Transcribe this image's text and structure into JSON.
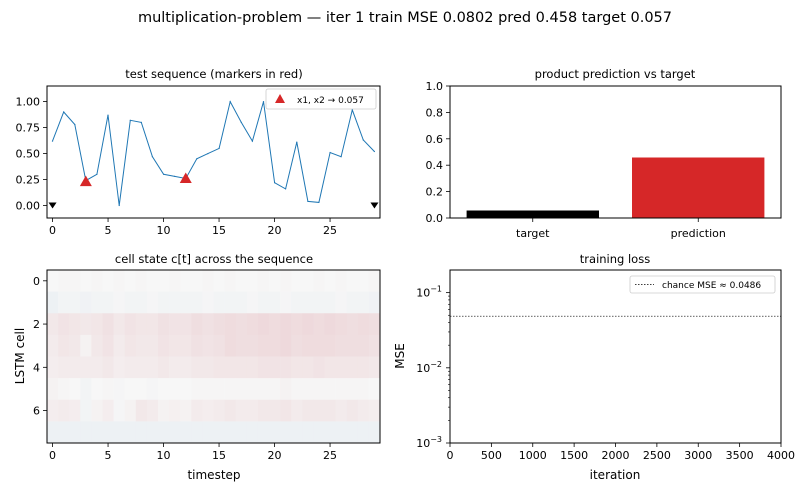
{
  "figure": {
    "suptitle": "multiplication-problem — iter 1   train MSE 0.0802   pred 0.458  target 0.057"
  },
  "chart_data": [
    {
      "type": "line",
      "title": "test sequence (markers in red)",
      "xlabel": "",
      "ylabel": "",
      "xlim": [
        -0.5,
        29.5
      ],
      "ylim": [
        -0.12,
        1.15
      ],
      "xticks": [
        "0",
        "5",
        "10",
        "15",
        "20",
        "25"
      ],
      "yticks": [
        "0.00",
        "0.25",
        "0.50",
        "0.75",
        "1.00"
      ],
      "x": [
        0,
        1,
        2,
        3,
        4,
        5,
        6,
        7,
        8,
        9,
        10,
        11,
        12,
        13,
        14,
        15,
        16,
        17,
        18,
        19,
        20,
        21,
        22,
        23,
        24,
        25,
        26,
        27,
        28,
        29
      ],
      "series": [
        {
          "name": "",
          "color": "#1f77b4",
          "values": [
            0.62,
            0.9,
            0.78,
            0.24,
            0.3,
            0.87,
            0.0,
            0.82,
            0.8,
            0.47,
            0.3,
            0.28,
            0.26,
            0.45,
            0.5,
            0.55,
            1.0,
            0.8,
            0.62,
            1.0,
            0.22,
            0.16,
            0.61,
            0.04,
            0.03,
            0.51,
            0.47,
            0.92,
            0.63,
            0.52
          ]
        }
      ],
      "markers": {
        "name": "x1, x2 → 0.057",
        "color": "#d62728",
        "x": [
          3,
          12
        ],
        "y": [
          0.23,
          0.26
        ]
      },
      "end_markers": {
        "color": "#000000",
        "x": [
          0,
          29
        ],
        "y": [
          0.0,
          0.0
        ]
      },
      "legend": "top-right"
    },
    {
      "type": "bar",
      "title": "product prediction vs target",
      "categories": [
        "target",
        "prediction"
      ],
      "values": [
        0.057,
        0.458
      ],
      "colors": [
        "#000000",
        "#d62728"
      ],
      "ylim": [
        0,
        1.0
      ],
      "yticks": [
        "0.0",
        "0.2",
        "0.4",
        "0.6",
        "0.8",
        "1.0"
      ]
    },
    {
      "type": "heatmap",
      "title": "cell state c[t] across the sequence",
      "xlabel": "timestep",
      "ylabel": "LSTM cell",
      "xticks": [
        "0",
        "5",
        "10",
        "15",
        "20",
        "25"
      ],
      "yticks": [
        "0",
        "2",
        "4",
        "6"
      ],
      "colormap": "RdBu_r",
      "rows": [
        [
          0.0,
          0.01,
          0.01,
          0.0,
          0.01,
          0.0,
          0.01,
          0.0,
          0.01,
          0.0,
          0.0,
          0.01,
          0.0,
          0.0,
          0.01,
          0.0,
          0.01,
          0.0,
          0.0,
          0.01,
          0.0,
          0.01,
          0.0,
          0.0,
          0.01,
          0.0,
          0.01,
          0.0,
          0.0,
          0.01
        ],
        [
          -0.04,
          -0.02,
          -0.02,
          -0.03,
          -0.02,
          -0.02,
          -0.01,
          -0.02,
          -0.02,
          -0.01,
          -0.02,
          -0.02,
          -0.02,
          -0.02,
          -0.01,
          -0.02,
          -0.02,
          -0.02,
          -0.01,
          -0.02,
          -0.02,
          -0.01,
          -0.02,
          -0.02,
          -0.02,
          -0.02,
          -0.01,
          -0.02,
          -0.02,
          -0.03
        ],
        [
          0.06,
          0.08,
          0.07,
          0.06,
          0.07,
          0.09,
          0.06,
          0.08,
          0.07,
          0.07,
          0.09,
          0.08,
          0.08,
          0.1,
          0.09,
          0.1,
          0.11,
          0.1,
          0.11,
          0.12,
          0.11,
          0.12,
          0.11,
          0.12,
          0.11,
          0.12,
          0.11,
          0.1,
          0.11,
          0.1
        ],
        [
          0.05,
          0.07,
          0.06,
          0.02,
          0.06,
          0.08,
          0.05,
          0.07,
          0.06,
          0.06,
          0.08,
          0.07,
          0.07,
          0.09,
          0.08,
          0.09,
          0.11,
          0.1,
          0.1,
          0.11,
          0.11,
          0.12,
          0.1,
          0.11,
          0.11,
          0.11,
          0.1,
          0.1,
          0.1,
          0.09
        ],
        [
          0.04,
          0.05,
          0.05,
          0.05,
          0.05,
          0.06,
          0.04,
          0.05,
          0.05,
          0.05,
          0.06,
          0.05,
          0.05,
          0.06,
          0.06,
          0.07,
          0.07,
          0.07,
          0.07,
          0.08,
          0.08,
          0.08,
          0.07,
          0.07,
          0.08,
          0.07,
          0.07,
          0.07,
          0.07,
          0.06
        ],
        [
          0.02,
          0.01,
          0.0,
          -0.02,
          0.0,
          0.01,
          -0.01,
          0.0,
          0.0,
          -0.01,
          0.0,
          0.0,
          0.0,
          0.01,
          0.01,
          0.01,
          0.01,
          0.01,
          0.01,
          0.01,
          0.01,
          0.02,
          0.01,
          0.01,
          0.01,
          0.01,
          0.01,
          0.01,
          0.01,
          0.0
        ],
        [
          0.04,
          0.05,
          0.04,
          -0.02,
          0.02,
          0.04,
          -0.01,
          0.02,
          0.06,
          0.05,
          0.02,
          0.03,
          0.02,
          0.05,
          0.04,
          0.05,
          0.06,
          0.05,
          0.05,
          0.06,
          0.06,
          0.07,
          0.05,
          0.06,
          0.06,
          0.06,
          0.05,
          0.06,
          0.05,
          0.04
        ],
        [
          -0.04,
          -0.04,
          -0.04,
          -0.04,
          -0.04,
          -0.04,
          -0.04,
          -0.04,
          -0.04,
          -0.04,
          -0.04,
          -0.04,
          -0.04,
          -0.04,
          -0.04,
          -0.04,
          -0.04,
          -0.04,
          -0.04,
          -0.04,
          -0.04,
          -0.04,
          -0.04,
          -0.04,
          -0.04,
          -0.04,
          -0.04,
          -0.04,
          -0.04,
          -0.04
        ]
      ]
    },
    {
      "type": "line",
      "title": "training loss",
      "xlabel": "iteration",
      "ylabel": "MSE",
      "yscale": "log",
      "xlim": [
        0,
        4000
      ],
      "ylim": [
        0.001,
        0.2
      ],
      "xticks": [
        "0",
        "500",
        "1000",
        "1500",
        "2000",
        "2500",
        "3000",
        "3500",
        "4000"
      ],
      "ytick_values": [
        0.001,
        0.01,
        0.1
      ],
      "series": [],
      "reference_line": {
        "name": "chance MSE ≈ 0.0486",
        "y": 0.0486,
        "style": "dotted",
        "color": "#000000"
      },
      "legend": "top-right"
    }
  ]
}
